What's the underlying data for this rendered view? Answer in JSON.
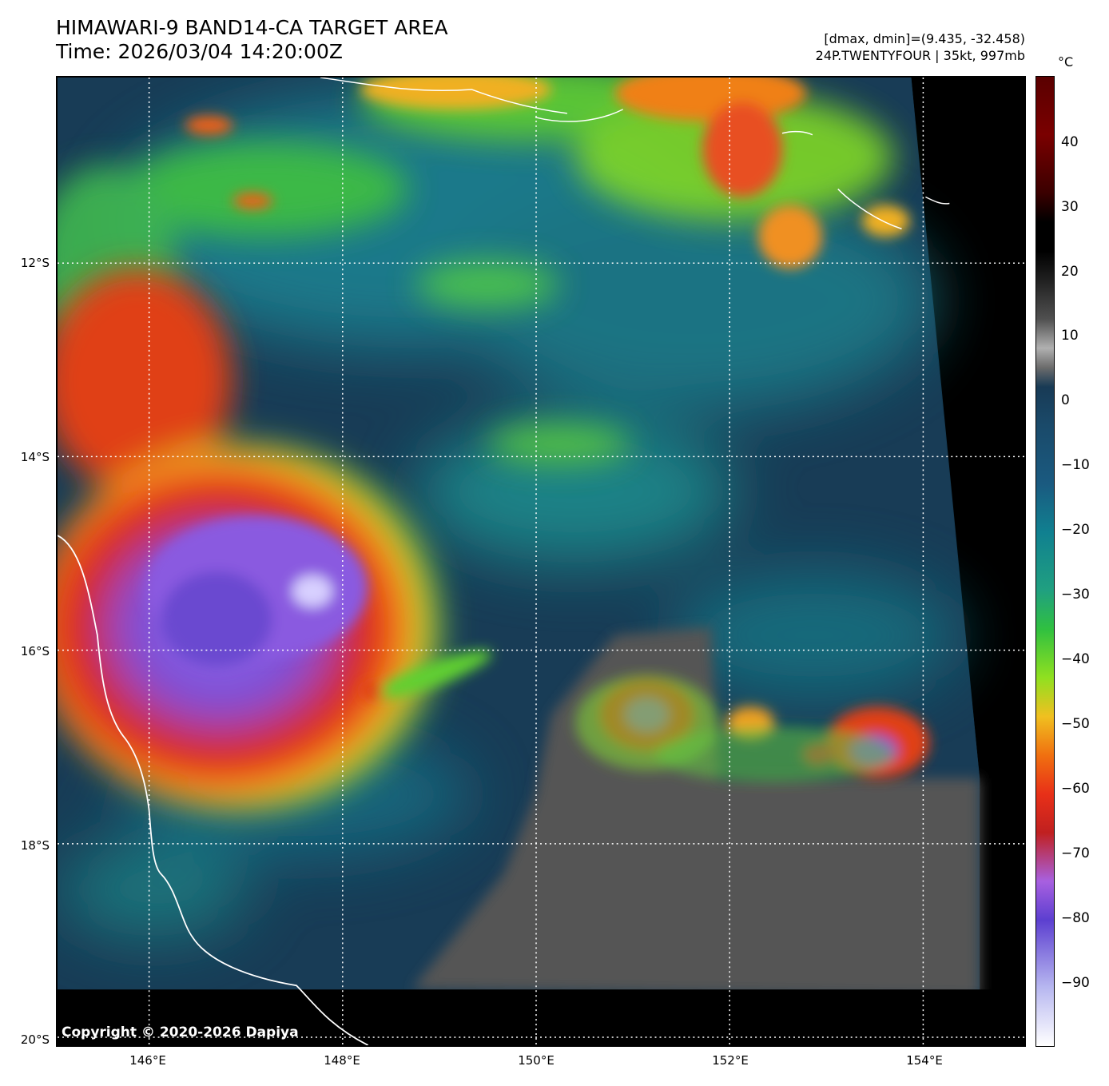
{
  "header": {
    "title_line1": "HIMAWARI-9 BAND14-CA TARGET AREA",
    "title_line2": "Time: 2026/03/04 14:20:00Z",
    "stats_line": "[dmax, dmin]=(9.435, -32.458)",
    "storm_line": "24P.TWENTYFOUR | 35kt, 997mb"
  },
  "map": {
    "copyright": "Copyright © 2020-2026 Dapiya",
    "lat_labels": [
      "12°S",
      "14°S",
      "16°S",
      "18°S",
      "20°S"
    ],
    "lon_labels": [
      "146°E",
      "148°E",
      "150°E",
      "152°E",
      "154°E"
    ]
  },
  "colorbar": {
    "unit": "°C",
    "ticks": [
      "40",
      "30",
      "20",
      "10",
      "0",
      "−10",
      "−20",
      "−30",
      "−40",
      "−50",
      "−60",
      "−70",
      "−80",
      "−90"
    ]
  },
  "colors": {
    "ocean": "#163a52",
    "warm_cloud": "#20a080",
    "cold_cloud": "#d02018",
    "coldest": "#8050e0",
    "land": "#5a5a5a",
    "coastline": "#ffffff",
    "gridline": "#ffffff"
  }
}
